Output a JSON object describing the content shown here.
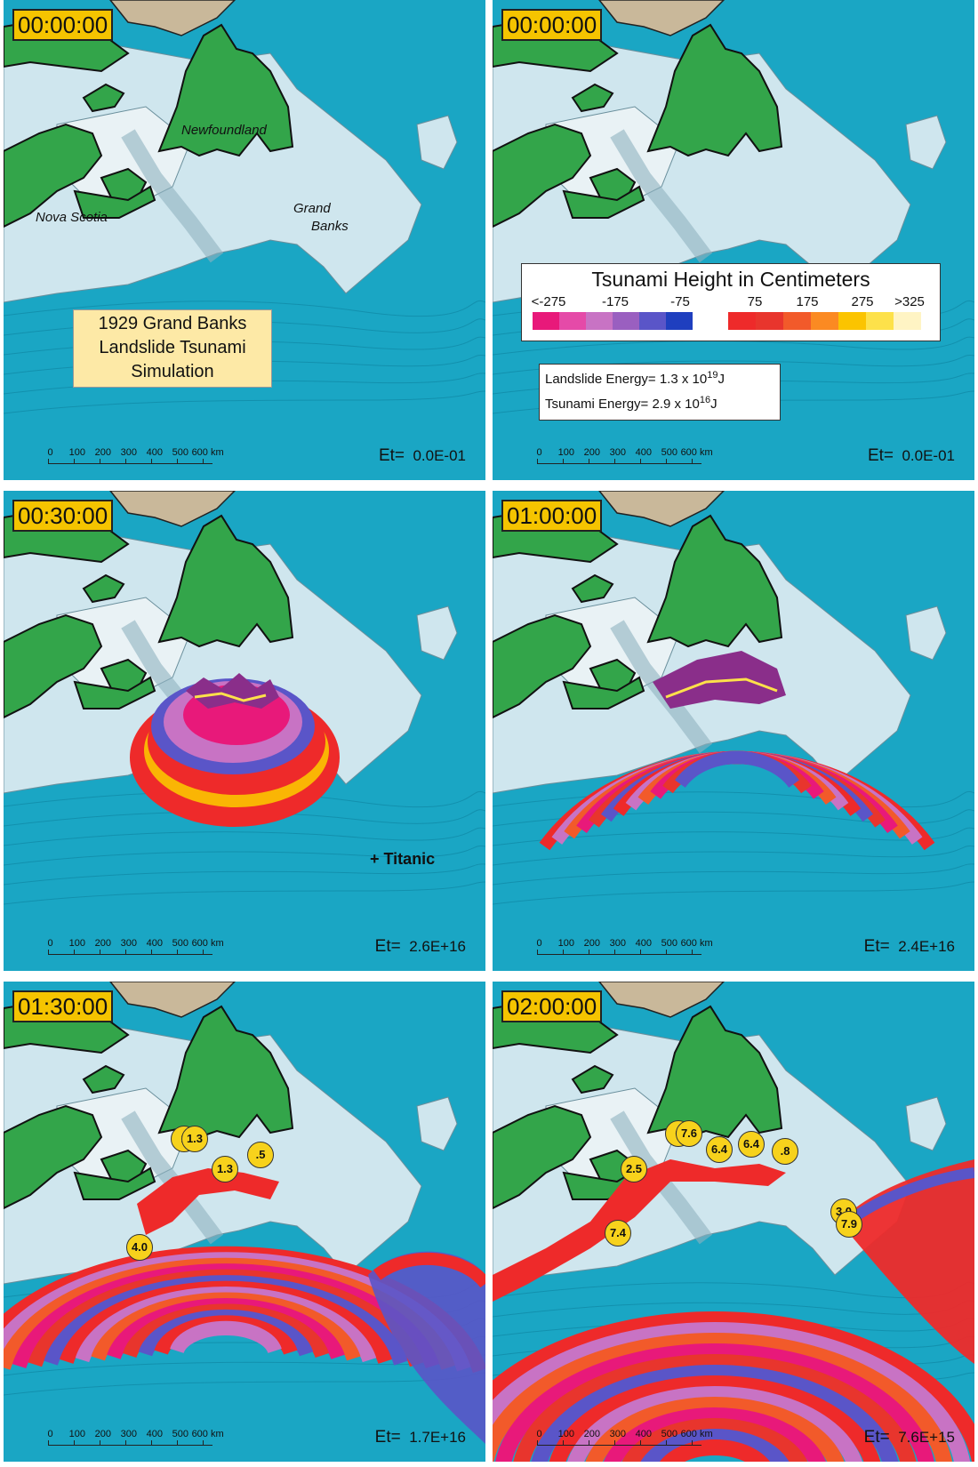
{
  "panels": [
    {
      "time": "00:00:00",
      "et_label": "Et=",
      "et_value": "0.0E-01",
      "wave": "none"
    },
    {
      "time": "00:00:00",
      "et_label": "Et=",
      "et_value": "0.0E-01",
      "wave": "none"
    },
    {
      "time": "00:30:00",
      "et_label": "Et=",
      "et_value": "2.6E+16",
      "wave": "t30"
    },
    {
      "time": "01:00:00",
      "et_label": "Et=",
      "et_value": "2.4E+16",
      "wave": "t60"
    },
    {
      "time": "01:30:00",
      "et_label": "Et=",
      "et_value": "1.7E+16",
      "wave": "t90"
    },
    {
      "time": "02:00:00",
      "et_label": "Et=",
      "et_value": "7.6E+15",
      "wave": "t120"
    }
  ],
  "scale_bar": {
    "ticks": [
      "0",
      "100",
      "200",
      "300",
      "400",
      "500",
      "600 km"
    ]
  },
  "places": {
    "newfoundland": "Newfoundland",
    "nova_scotia": "Nova Scotia",
    "grand_banks_1": "Grand",
    "grand_banks_2": "Banks"
  },
  "title_box": {
    "line1": "1929 Grand Banks",
    "line2": "Landslide Tsunami",
    "line3": "Simulation"
  },
  "legend": {
    "title": "Tsunami Height in Centimeters",
    "neg_ticks": [
      "<-275",
      "-175",
      "-75"
    ],
    "pos_ticks": [
      "75",
      "175",
      "275",
      ">325"
    ],
    "neg_colors": [
      "#e8197a",
      "#e54aa8",
      "#c873c4",
      "#9a5fc0",
      "#5a55c8",
      "#1f3fbf"
    ],
    "pos_colors": [
      "#ee2a2a",
      "#e8352d",
      "#f25a2a",
      "#fb8a22",
      "#fbc400",
      "#fde14a",
      "#fff4c4"
    ]
  },
  "energy": {
    "landslide_prefix": "Landslide Energy= 1.3 x 10",
    "landslide_exp": "19",
    "landslide_unit": "J",
    "tsunami_prefix": "Tsunami Energy= 2.9 x 10",
    "tsunami_exp": "16",
    "tsunami_unit": "J"
  },
  "titanic_label": "+ Titanic",
  "badges_t90": [
    "1",
    "1.3",
    "1.3",
    ".5",
    "4.0"
  ],
  "badges_t120": [
    "6",
    "7.6",
    "6.4",
    "6.4",
    ".8",
    "2.5",
    "7.4",
    "3.0",
    "7.9"
  ],
  "colors": {
    "ocean": "#1aa6c4",
    "shelf": "#cfe6ee",
    "land_green": "#33a54a",
    "land_tan": "#c9b89a"
  }
}
